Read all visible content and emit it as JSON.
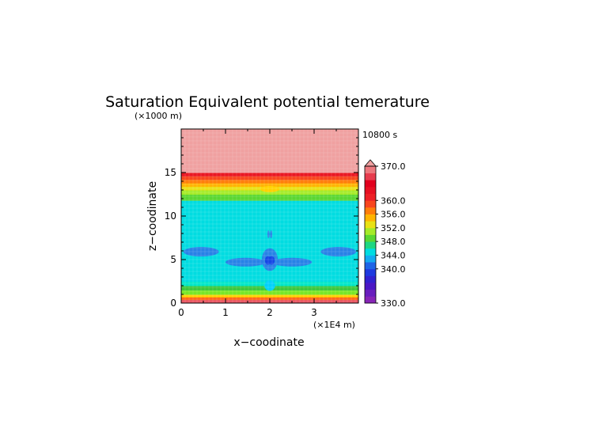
{
  "chart_data": {
    "type": "heatmap",
    "title": "Saturation Equivalent potential temerature",
    "time_label": "10800 s",
    "xlabel": "x−coodinate",
    "ylabel": "z−coodinate",
    "x_unit": "(×1E4 m)",
    "y_unit": "(×1000 m)",
    "xlim": [
      0,
      4
    ],
    "ylim": [
      0,
      20
    ],
    "x_ticks": [
      0,
      1,
      2,
      3
    ],
    "y_ticks": [
      0,
      5,
      10,
      15
    ],
    "x_tick_labels": [
      "0",
      "1",
      "2",
      "3"
    ],
    "y_tick_labels": [
      "0",
      "5",
      "10",
      "15"
    ],
    "colorbar": {
      "range": [
        330,
        370
      ],
      "step": 2,
      "tick_values": [
        330,
        340,
        344,
        348,
        352,
        356,
        360,
        370
      ],
      "tick_labels": [
        "330.0",
        "340.0",
        "344.0",
        "348.0",
        "352.0",
        "356.0",
        "360.0",
        "370.0"
      ],
      "overflow_color": "#f0a0a0"
    },
    "layers": [
      {
        "z": [
          0.0,
          0.4
        ],
        "value": 368
      },
      {
        "z": [
          0.4,
          0.7
        ],
        "value": 358
      },
      {
        "z": [
          0.7,
          1.0
        ],
        "value": 354
      },
      {
        "z": [
          1.0,
          1.5
        ],
        "value": 350
      },
      {
        "z": [
          1.5,
          2.0
        ],
        "value": 348
      },
      {
        "z": [
          2.0,
          2.5
        ],
        "value": 346
      },
      {
        "z": [
          2.5,
          11.8
        ],
        "value": 345
      },
      {
        "z": [
          11.8,
          12.5
        ],
        "value": 349
      },
      {
        "z": [
          12.5,
          13.0
        ],
        "value": 351
      },
      {
        "z": [
          13.0,
          13.4
        ],
        "value": 353
      },
      {
        "z": [
          13.4,
          13.8
        ],
        "value": 355
      },
      {
        "z": [
          13.8,
          14.2
        ],
        "value": 357
      },
      {
        "z": [
          14.2,
          14.6
        ],
        "value": 359
      },
      {
        "z": [
          14.6,
          15.0
        ],
        "value": 362
      },
      {
        "z": [
          15.0,
          20.0
        ],
        "value": 372
      }
    ],
    "features": [
      {
        "x": 0.45,
        "z": 5.9,
        "rx": 0.4,
        "rz": 0.55,
        "value": 342
      },
      {
        "x": 3.55,
        "z": 5.9,
        "rx": 0.4,
        "rz": 0.55,
        "value": 342
      },
      {
        "x": 1.45,
        "z": 4.7,
        "rx": 0.45,
        "rz": 0.5,
        "value": 342
      },
      {
        "x": 2.5,
        "z": 4.7,
        "rx": 0.45,
        "rz": 0.5,
        "value": 342
      },
      {
        "x": 2.0,
        "z": 5.0,
        "rx": 0.18,
        "rz": 1.3,
        "value": 342
      },
      {
        "x": 1.96,
        "z": 4.9,
        "rx": 0.07,
        "rz": 0.5,
        "value": 340
      },
      {
        "x": 2.04,
        "z": 4.9,
        "rx": 0.07,
        "rz": 0.5,
        "value": 340
      },
      {
        "x": 1.97,
        "z": 7.9,
        "rx": 0.025,
        "rz": 0.45,
        "value": 342
      },
      {
        "x": 2.03,
        "z": 7.9,
        "rx": 0.025,
        "rz": 0.45,
        "value": 342
      },
      {
        "x": 2.0,
        "z": 2.0,
        "rx": 0.12,
        "rz": 0.6,
        "value": 344
      },
      {
        "x": 2.0,
        "z": 13.1,
        "rx": 0.22,
        "rz": 0.35,
        "value": 354
      }
    ]
  }
}
